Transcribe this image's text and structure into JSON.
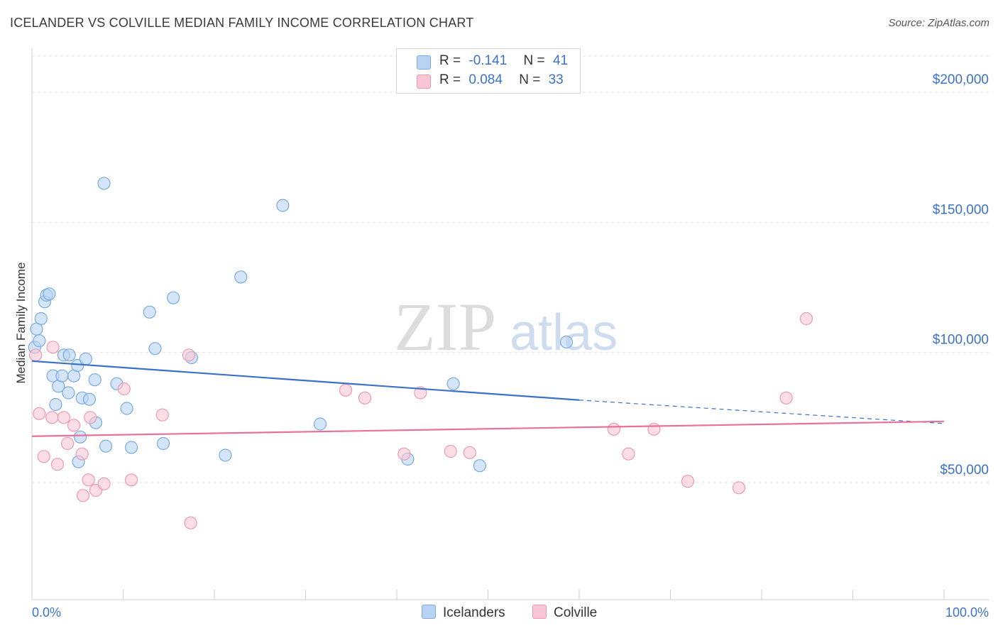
{
  "title": "ICELANDER VS COLVILLE MEDIAN FAMILY INCOME CORRELATION CHART",
  "source": "Source: ZipAtlas.com",
  "watermark": {
    "zip": "ZIP",
    "atlas": "atlas"
  },
  "legend": {
    "r_label": "R =",
    "n_label": "N =",
    "series": [
      {
        "name": "Icelanders",
        "r": "-0.141",
        "n": "41"
      },
      {
        "name": "Colville",
        "r": "0.084",
        "n": "33"
      }
    ]
  },
  "colors": {
    "icelanders_fill": "#b8d3f2",
    "icelanders_stroke": "#7aaae0",
    "icelanders_line": "#3b72c8",
    "colville_fill": "#f8c6d4",
    "colville_stroke": "#ec9ab2",
    "colville_line": "#e8709a",
    "axis_label": "#3b72c8",
    "grid": "#e2e2e2"
  },
  "chart_data": {
    "type": "scatter",
    "title": "ICELANDER VS COLVILLE MEDIAN FAMILY INCOME CORRELATION CHART",
    "xlabel": "",
    "ylabel": "Median Family Income",
    "xlim": [
      0,
      100
    ],
    "ylim": [
      5000,
      215000
    ],
    "x_tick_labels": [
      "0.0%",
      "100.0%"
    ],
    "y_ticks": [
      50000,
      100000,
      150000,
      200000
    ],
    "y_tick_labels": [
      "$50,000",
      "$100,000",
      "$150,000",
      "$200,000"
    ],
    "series": [
      {
        "name": "Icelanders",
        "points": [
          [
            0.3,
            102000
          ],
          [
            0.5,
            109000
          ],
          [
            0.8,
            104500
          ],
          [
            1.0,
            113000
          ],
          [
            1.4,
            119500
          ],
          [
            1.6,
            122000
          ],
          [
            1.9,
            122500
          ],
          [
            2.3,
            91000
          ],
          [
            2.6,
            80000
          ],
          [
            2.9,
            87000
          ],
          [
            3.3,
            91000
          ],
          [
            3.5,
            99000
          ],
          [
            4.0,
            84500
          ],
          [
            4.1,
            99000
          ],
          [
            4.6,
            91000
          ],
          [
            5.0,
            95000
          ],
          [
            5.3,
            67500
          ],
          [
            5.1,
            58000
          ],
          [
            5.5,
            82500
          ],
          [
            5.9,
            97500
          ],
          [
            6.3,
            82000
          ],
          [
            6.9,
            89500
          ],
          [
            7.0,
            73000
          ],
          [
            7.9,
            165000
          ],
          [
            8.1,
            64000
          ],
          [
            9.3,
            88000
          ],
          [
            10.4,
            78500
          ],
          [
            10.9,
            63500
          ],
          [
            12.9,
            115500
          ],
          [
            13.5,
            101500
          ],
          [
            14.4,
            65000
          ],
          [
            15.5,
            121000
          ],
          [
            17.5,
            98000
          ],
          [
            21.2,
            60500
          ],
          [
            22.9,
            129000
          ],
          [
            27.5,
            156500
          ],
          [
            31.6,
            72500
          ],
          [
            41.2,
            59000
          ],
          [
            46.2,
            88000
          ],
          [
            49.1,
            56500
          ],
          [
            58.6,
            104000
          ]
        ]
      },
      {
        "name": "Colville",
        "points": [
          [
            0.4,
            99000
          ],
          [
            0.8,
            76500
          ],
          [
            1.3,
            60000
          ],
          [
            2.2,
            75000
          ],
          [
            2.3,
            102000
          ],
          [
            2.8,
            57000
          ],
          [
            3.5,
            75000
          ],
          [
            3.9,
            65000
          ],
          [
            4.6,
            72000
          ],
          [
            5.5,
            61000
          ],
          [
            5.6,
            45000
          ],
          [
            6.4,
            75000
          ],
          [
            6.2,
            51000
          ],
          [
            7.0,
            47000
          ],
          [
            7.9,
            49500
          ],
          [
            10.1,
            86000
          ],
          [
            10.9,
            51000
          ],
          [
            14.3,
            76000
          ],
          [
            17.2,
            99000
          ],
          [
            17.4,
            34500
          ],
          [
            34.4,
            85500
          ],
          [
            36.5,
            82500
          ],
          [
            40.8,
            61000
          ],
          [
            42.6,
            84500
          ],
          [
            45.9,
            62000
          ],
          [
            48.0,
            61500
          ],
          [
            63.8,
            70500
          ],
          [
            65.4,
            61000
          ],
          [
            68.2,
            70500
          ],
          [
            71.9,
            50500
          ],
          [
            77.5,
            48000
          ],
          [
            82.7,
            82500
          ],
          [
            84.9,
            113000
          ]
        ]
      }
    ],
    "trendlines": [
      {
        "series": "Icelanders",
        "x": [
          0,
          60
        ],
        "y": [
          96700,
          81700
        ],
        "dashed_extension": {
          "x": [
            60,
            100
          ],
          "y": [
            81700,
            72700
          ]
        }
      },
      {
        "series": "Colville",
        "x": [
          0,
          100
        ],
        "y": [
          67800,
          73500
        ]
      }
    ]
  }
}
